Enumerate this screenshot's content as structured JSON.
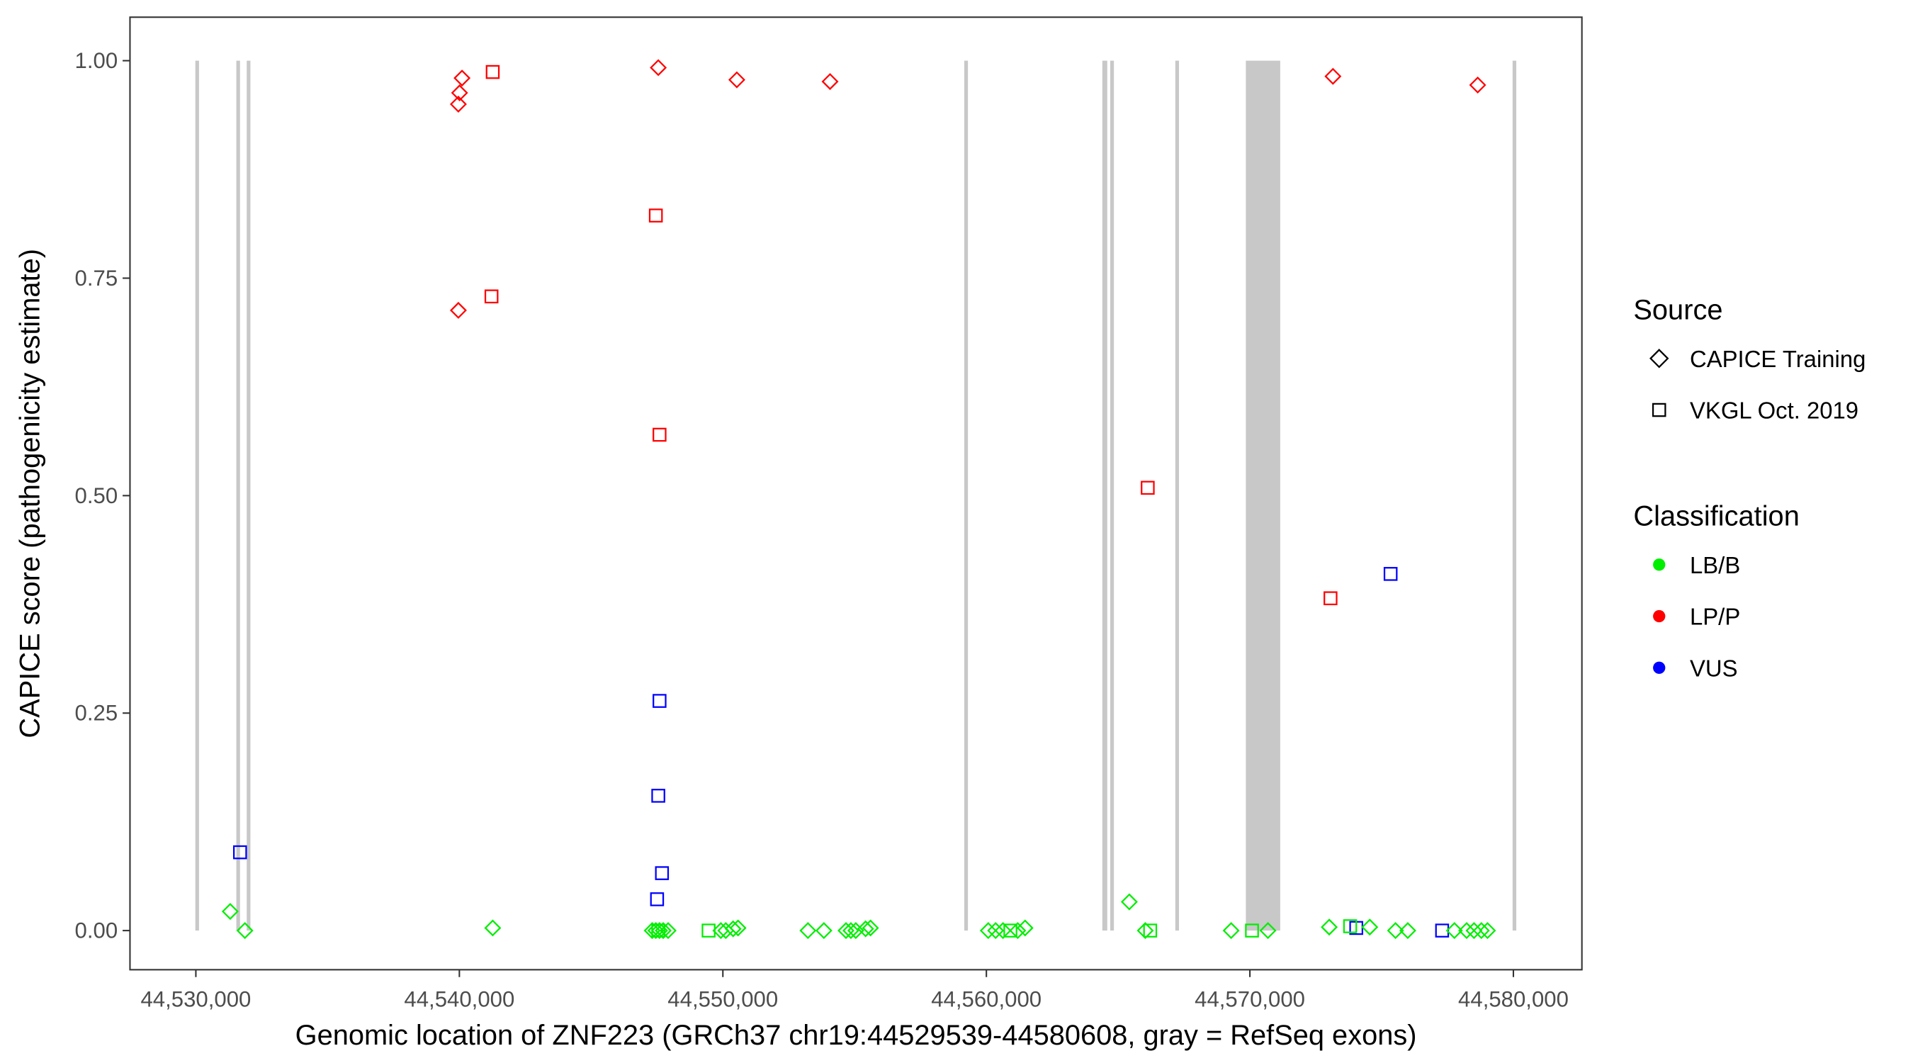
{
  "chart_data": {
    "type": "scatter",
    "xlabel": "Genomic location of ZNF223 (GRCh37 chr19:44529539-44580608, gray = RefSeq exons)",
    "ylabel": "CAPICE score (pathogenicity estimate)",
    "xlim": [
      44527500,
      44582600
    ],
    "ylim": [
      -0.045,
      1.05
    ],
    "xticks": [
      44530000,
      44540000,
      44550000,
      44560000,
      44570000,
      44580000
    ],
    "xtick_labels": [
      "44,530,000",
      "44,540,000",
      "44,550,000",
      "44,560,000",
      "44,570,000",
      "44,580,000"
    ],
    "yticks": [
      0,
      0.25,
      0.5,
      0.75,
      1
    ],
    "ytick_labels": [
      "0.00",
      "0.25",
      "0.50",
      "0.75",
      "1.00"
    ],
    "grid": false,
    "exons": [
      [
        44529980,
        44530030
      ],
      [
        44531536,
        44531676
      ],
      [
        44531930,
        44531980
      ],
      [
        44559160,
        44559215
      ],
      [
        44564400,
        44564587
      ],
      [
        44564700,
        44564760
      ],
      [
        44567170,
        44567220
      ],
      [
        44569847,
        44571151
      ],
      [
        44579970,
        44580020
      ]
    ],
    "colors": {
      "LB/B": "#00ee00",
      "LP/P": "#ff0000",
      "VUS": "#0000ff",
      "exon": "#c8c8c8"
    },
    "legend": {
      "position": "right",
      "source_title": "Source",
      "source_items": [
        {
          "label": "CAPICE Training",
          "shape": "diamond"
        },
        {
          "label": "VKGL Oct. 2019",
          "shape": "square"
        }
      ],
      "class_title": "Classification",
      "class_items": [
        {
          "label": "LB/B"
        },
        {
          "label": "LP/P"
        },
        {
          "label": "VUS"
        }
      ]
    },
    "points": [
      {
        "x": 44539962,
        "y": 0.95,
        "s": "diamond",
        "c": "LP/P"
      },
      {
        "x": 44540008,
        "y": 0.963,
        "s": "diamond",
        "c": "LP/P"
      },
      {
        "x": 44540101,
        "y": 0.98,
        "s": "diamond",
        "c": "LP/P"
      },
      {
        "x": 44539962,
        "y": 0.713,
        "s": "diamond",
        "c": "LP/P"
      },
      {
        "x": 44547549,
        "y": 0.992,
        "s": "diamond",
        "c": "LP/P"
      },
      {
        "x": 44550529,
        "y": 0.978,
        "s": "diamond",
        "c": "LP/P"
      },
      {
        "x": 44554067,
        "y": 0.976,
        "s": "diamond",
        "c": "LP/P"
      },
      {
        "x": 44573152,
        "y": 0.982,
        "s": "diamond",
        "c": "LP/P"
      },
      {
        "x": 44578645,
        "y": 0.972,
        "s": "diamond",
        "c": "LP/P"
      },
      {
        "x": 44541265,
        "y": 0.987,
        "s": "square",
        "c": "LP/P"
      },
      {
        "x": 44547456,
        "y": 0.822,
        "s": "square",
        "c": "LP/P"
      },
      {
        "x": 44541219,
        "y": 0.729,
        "s": "square",
        "c": "LP/P"
      },
      {
        "x": 44547596,
        "y": 0.57,
        "s": "square",
        "c": "LP/P"
      },
      {
        "x": 44566123,
        "y": 0.509,
        "s": "square",
        "c": "LP/P"
      },
      {
        "x": 44573059,
        "y": 0.382,
        "s": "square",
        "c": "LP/P"
      },
      {
        "x": 44531676,
        "y": 0.09,
        "s": "square",
        "c": "VUS"
      },
      {
        "x": 44547596,
        "y": 0.264,
        "s": "square",
        "c": "VUS"
      },
      {
        "x": 44547549,
        "y": 0.155,
        "s": "square",
        "c": "VUS"
      },
      {
        "x": 44547689,
        "y": 0.066,
        "s": "square",
        "c": "VUS"
      },
      {
        "x": 44547503,
        "y": 0.036,
        "s": "square",
        "c": "VUS"
      },
      {
        "x": 44575340,
        "y": 0.41,
        "s": "square",
        "c": "VUS"
      },
      {
        "x": 44574037,
        "y": 0.003,
        "s": "square",
        "c": "VUS"
      },
      {
        "x": 44577295,
        "y": 0.0,
        "s": "square",
        "c": "VUS"
      },
      {
        "x": 44547549,
        "y": 0.0,
        "s": "square",
        "c": "LB/B"
      },
      {
        "x": 44549458,
        "y": 0.0,
        "s": "square",
        "c": "LB/B"
      },
      {
        "x": 44560910,
        "y": 0.0,
        "s": "square",
        "c": "LB/B"
      },
      {
        "x": 44566216,
        "y": 0.0,
        "s": "square",
        "c": "LB/B"
      },
      {
        "x": 44570080,
        "y": 0.0,
        "s": "square",
        "c": "LB/B"
      },
      {
        "x": 44573804,
        "y": 0.005,
        "s": "square",
        "c": "LB/B"
      },
      {
        "x": 44531303,
        "y": 0.022,
        "s": "diamond",
        "c": "LB/B"
      },
      {
        "x": 44531862,
        "y": 0.0,
        "s": "diamond",
        "c": "LB/B"
      },
      {
        "x": 44541265,
        "y": 0.003,
        "s": "diamond",
        "c": "LB/B"
      },
      {
        "x": 44547317,
        "y": 0.0,
        "s": "diamond",
        "c": "LB/B"
      },
      {
        "x": 44547456,
        "y": 0.0,
        "s": "diamond",
        "c": "LB/B"
      },
      {
        "x": 44547596,
        "y": 0.0,
        "s": "diamond",
        "c": "LB/B"
      },
      {
        "x": 44547735,
        "y": 0.0,
        "s": "diamond",
        "c": "LB/B"
      },
      {
        "x": 44547922,
        "y": 0.0,
        "s": "diamond",
        "c": "LB/B"
      },
      {
        "x": 44549923,
        "y": 0.0,
        "s": "diamond",
        "c": "LB/B"
      },
      {
        "x": 44550110,
        "y": 0.0,
        "s": "diamond",
        "c": "LB/B"
      },
      {
        "x": 44550389,
        "y": 0.002,
        "s": "diamond",
        "c": "LB/B"
      },
      {
        "x": 44550575,
        "y": 0.003,
        "s": "diamond",
        "c": "LB/B"
      },
      {
        "x": 44553228,
        "y": 0.0,
        "s": "diamond",
        "c": "LB/B"
      },
      {
        "x": 44553834,
        "y": 0.0,
        "s": "diamond",
        "c": "LB/B"
      },
      {
        "x": 44554672,
        "y": 0.0,
        "s": "diamond",
        "c": "LB/B"
      },
      {
        "x": 44554858,
        "y": 0.0,
        "s": "diamond",
        "c": "LB/B"
      },
      {
        "x": 44555044,
        "y": 0.0,
        "s": "diamond",
        "c": "LB/B"
      },
      {
        "x": 44555416,
        "y": 0.002,
        "s": "diamond",
        "c": "LB/B"
      },
      {
        "x": 44555602,
        "y": 0.003,
        "s": "diamond",
        "c": "LB/B"
      },
      {
        "x": 44560071,
        "y": 0.0,
        "s": "diamond",
        "c": "LB/B"
      },
      {
        "x": 44560351,
        "y": 0.0,
        "s": "diamond",
        "c": "LB/B"
      },
      {
        "x": 44560630,
        "y": 0.0,
        "s": "diamond",
        "c": "LB/B"
      },
      {
        "x": 44561189,
        "y": 0.0,
        "s": "diamond",
        "c": "LB/B"
      },
      {
        "x": 44561468,
        "y": 0.003,
        "s": "diamond",
        "c": "LB/B"
      },
      {
        "x": 44565425,
        "y": 0.033,
        "s": "diamond",
        "c": "LB/B"
      },
      {
        "x": 44566030,
        "y": 0.0,
        "s": "diamond",
        "c": "LB/B"
      },
      {
        "x": 44569288,
        "y": 0.0,
        "s": "diamond",
        "c": "LB/B"
      },
      {
        "x": 44570685,
        "y": 0.0,
        "s": "diamond",
        "c": "LB/B"
      },
      {
        "x": 44573012,
        "y": 0.004,
        "s": "diamond",
        "c": "LB/B"
      },
      {
        "x": 44574549,
        "y": 0.004,
        "s": "diamond",
        "c": "LB/B"
      },
      {
        "x": 44575526,
        "y": 0.0,
        "s": "diamond",
        "c": "LB/B"
      },
      {
        "x": 44575992,
        "y": 0.0,
        "s": "diamond",
        "c": "LB/B"
      },
      {
        "x": 44577761,
        "y": 0.0,
        "s": "diamond",
        "c": "LB/B"
      },
      {
        "x": 44578226,
        "y": 0.0,
        "s": "diamond",
        "c": "LB/B"
      },
      {
        "x": 44578505,
        "y": 0.0,
        "s": "diamond",
        "c": "LB/B"
      },
      {
        "x": 44578784,
        "y": 0.0,
        "s": "diamond",
        "c": "LB/B"
      },
      {
        "x": 44579017,
        "y": 0.0,
        "s": "diamond",
        "c": "LB/B"
      }
    ]
  }
}
